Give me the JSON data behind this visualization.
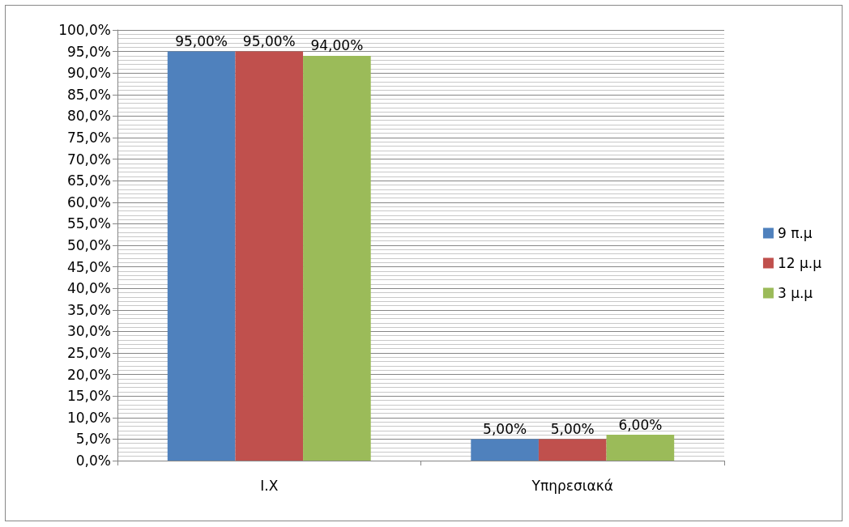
{
  "chart_data": {
    "type": "bar",
    "categories": [
      "I.X",
      "Υπηρεσιακά"
    ],
    "series": [
      {
        "name": "9 π.μ",
        "color": "#4f81bd",
        "values": [
          95,
          5
        ],
        "value_labels": [
          "95,00%",
          "5,00%"
        ]
      },
      {
        "name": "12 μ.μ",
        "color": "#c0504d",
        "values": [
          95,
          5
        ],
        "value_labels": [
          "95,00%",
          "5,00%"
        ]
      },
      {
        "name": "3 μ.μ",
        "color": "#9bbb59",
        "values": [
          94,
          6
        ],
        "value_labels": [
          "94,00%",
          "6,00%"
        ]
      }
    ],
    "ylim": [
      0,
      100
    ],
    "yticks": [
      {
        "value": 0,
        "label": "0,0%"
      },
      {
        "value": 5,
        "label": "5,0%"
      },
      {
        "value": 10,
        "label": "10,0%"
      },
      {
        "value": 15,
        "label": "15,0%"
      },
      {
        "value": 20,
        "label": "20,0%"
      },
      {
        "value": 25,
        "label": "25,0%"
      },
      {
        "value": 30,
        "label": "30,0%"
      },
      {
        "value": 35,
        "label": "35,0%"
      },
      {
        "value": 40,
        "label": "40,0%"
      },
      {
        "value": 45,
        "label": "45,0%"
      },
      {
        "value": 50,
        "label": "50,0%"
      },
      {
        "value": 55,
        "label": "55,0%"
      },
      {
        "value": 60,
        "label": "60,0%"
      },
      {
        "value": 65,
        "label": "65,0%"
      },
      {
        "value": 70,
        "label": "70,0%"
      },
      {
        "value": 75,
        "label": "75,0%"
      },
      {
        "value": 80,
        "label": "80,0%"
      },
      {
        "value": 85,
        "label": "85,0%"
      },
      {
        "value": 90,
        "label": "90,0%"
      },
      {
        "value": 95,
        "label": "95,0%"
      },
      {
        "value": 100,
        "label": "100,0%"
      }
    ],
    "grid": true,
    "legend": "right"
  }
}
